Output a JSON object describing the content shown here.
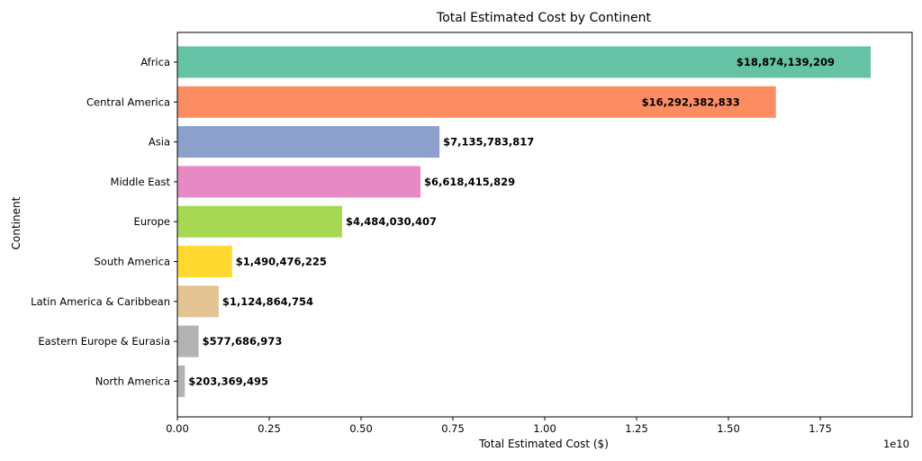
{
  "chart_data": {
    "type": "bar",
    "orientation": "horizontal",
    "title": "Total Estimated Cost by Continent",
    "xlabel": "Total Estimated Cost ($)",
    "ylabel": "Continent",
    "x_offset_label": "1e10",
    "xlim": [
      0,
      2.0
    ],
    "x_ticks": [
      0.0,
      0.25,
      0.5,
      0.75,
      1.0,
      1.25,
      1.5,
      1.75
    ],
    "x_tick_labels": [
      "0.00",
      "0.25",
      "0.50",
      "0.75",
      "1.00",
      "1.25",
      "1.50",
      "1.75"
    ],
    "grid": false,
    "categories": [
      "Africa",
      "Central America",
      "Asia",
      "Middle East",
      "Europe",
      "South America",
      "Latin America & Caribbean",
      "Eastern Europe & Eurasia",
      "North America"
    ],
    "values": [
      18874139209,
      16292382833,
      7135783817,
      6618415829,
      4484030407,
      1490476225,
      1124864754,
      577686973,
      203369495
    ],
    "value_labels": [
      "$18,874,139,209",
      "$16,292,382,833",
      "$7,135,783,817",
      "$6,618,415,829",
      "$4,484,030,407",
      "$1,490,476,225",
      "$1,124,864,754",
      "$577,686,973",
      "$203,369,495"
    ],
    "colors": [
      "#66c2a5",
      "#fc8d62",
      "#8da0cb",
      "#e78ac3",
      "#a6d854",
      "#ffd92f",
      "#e5c494",
      "#b3b3b3",
      "#b3b3b3"
    ]
  }
}
